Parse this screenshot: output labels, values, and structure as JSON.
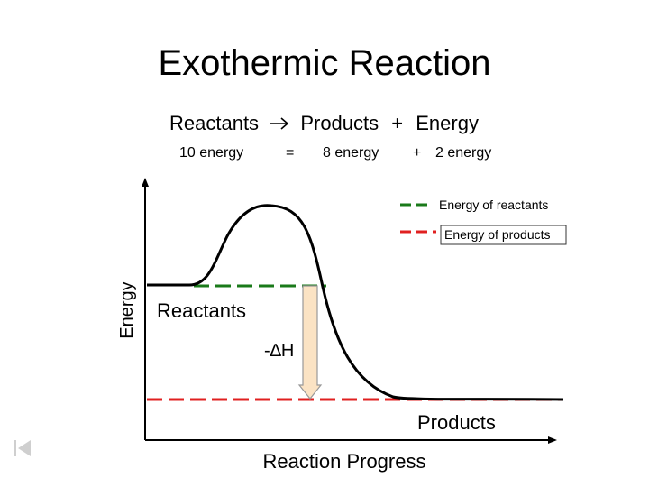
{
  "slide": {
    "title": "Exothermic Reaction",
    "equation": {
      "reactants": "Reactants",
      "products": "Products",
      "plus": "+",
      "energy": "Energy"
    },
    "energy_breakdown": {
      "reactant_energy": "10 energy",
      "equals": "=",
      "product_energy": "8 energy",
      "plus": "+",
      "released_energy": "2 energy"
    }
  },
  "diagram": {
    "y_axis_label": "Energy",
    "x_axis_label": "Reaction Progress",
    "reactants_label": "Reactants",
    "products_label": "Products",
    "delta_h_label": "-∆H",
    "legend": [
      {
        "label": "Energy of reactants",
        "color": "#1a7a1a"
      },
      {
        "label": "Energy of products",
        "color": "#e02020"
      }
    ],
    "colors": {
      "curve": "#000000",
      "reactant_level": "#1a7a1a",
      "product_level": "#e02020",
      "arrow_fill": "#fbe3c4",
      "arrow_stroke": "#999999"
    }
  },
  "navigation": {
    "icon": "first-slide-icon"
  }
}
